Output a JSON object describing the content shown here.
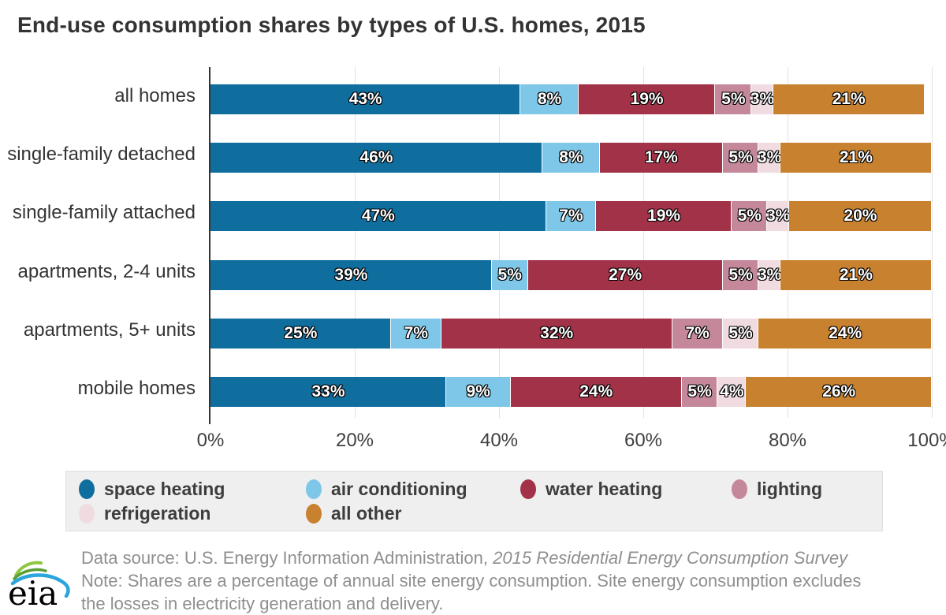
{
  "title": "End-use consumption shares by types of U.S. homes, 2015",
  "chart_data": {
    "type": "bar",
    "stacked": true,
    "orientation": "horizontal",
    "title": "End-use consumption shares by types of U.S. homes, 2015",
    "categories": [
      "all homes",
      "single-family detached",
      "single-family attached",
      "apartments, 2-4 units",
      "apartments, 5+ units",
      "mobile homes"
    ],
    "series": [
      {
        "name": "space heating",
        "color": "#0f6e9e",
        "values": [
          43,
          46,
          47,
          39,
          25,
          33
        ]
      },
      {
        "name": "air conditioning",
        "color": "#7ec7e8",
        "values": [
          8,
          8,
          7,
          5,
          7,
          9
        ]
      },
      {
        "name": "water heating",
        "color": "#a23248",
        "values": [
          19,
          17,
          19,
          27,
          32,
          24
        ]
      },
      {
        "name": "lighting",
        "color": "#c5879a",
        "values": [
          5,
          5,
          5,
          5,
          7,
          5
        ]
      },
      {
        "name": "refrigeration",
        "color": "#f0dbe1",
        "values": [
          3,
          3,
          3,
          3,
          5,
          4
        ]
      },
      {
        "name": "all other",
        "color": "#c8812f",
        "values": [
          21,
          21,
          20,
          21,
          24,
          26
        ]
      }
    ],
    "value_suffix": "%",
    "x_ticks": [
      "0%",
      "20%",
      "40%",
      "60%",
      "80%",
      "100%"
    ],
    "xlim": [
      0,
      100
    ],
    "xlabel": "",
    "ylabel": "",
    "grid": "vertical",
    "legend_position": "bottom"
  },
  "footer": {
    "source_regular": "Data source: U.S. Energy Information Administration, ",
    "source_italic": "2015 Residential Energy Consumption Survey",
    "note": "Note: Shares are a percentage of annual site energy consumption. Site energy consumption excludes the losses in electricity generation and delivery."
  },
  "logo": {
    "text": "eia"
  }
}
